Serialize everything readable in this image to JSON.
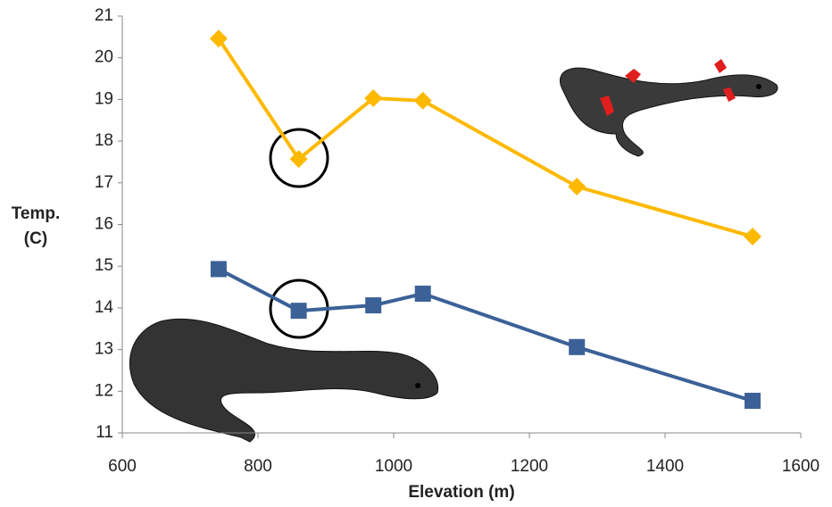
{
  "chart_data": {
    "type": "line",
    "x_label": "Elevation (m)",
    "y_label": [
      "Temp.",
      "(C)"
    ],
    "xlim": [
      600,
      1600
    ],
    "xticks": [
      600,
      800,
      1000,
      1200,
      1400,
      1600
    ],
    "ylim": [
      11,
      21
    ],
    "yticks": [
      11,
      12,
      13,
      14,
      15,
      16,
      17,
      18,
      19,
      20,
      21
    ],
    "grid": false,
    "series": [
      {
        "color": "#fcb900",
        "marker": "diamond",
        "x": [
          742,
          860,
          970,
          1043,
          1270,
          1529
        ],
        "values": [
          20.46,
          17.57,
          19.03,
          18.97,
          16.91,
          15.71
        ]
      },
      {
        "color": "#3b6197",
        "marker": "square",
        "x": [
          742,
          860,
          970,
          1043,
          1270,
          1529
        ],
        "values": [
          14.93,
          13.93,
          14.06,
          14.34,
          13.06,
          11.77
        ]
      }
    ]
  }
}
